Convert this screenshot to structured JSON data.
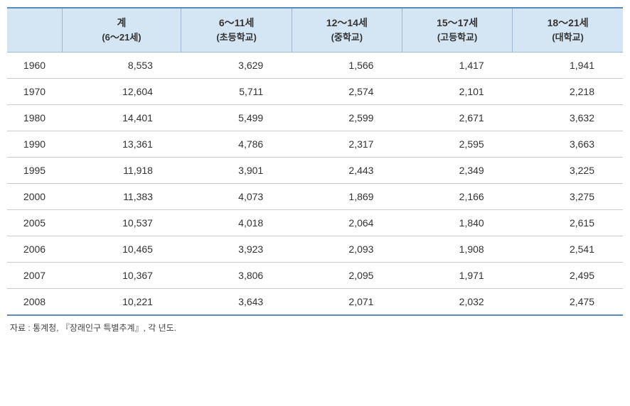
{
  "table": {
    "columns": [
      {
        "main": "",
        "sub": ""
      },
      {
        "main": "계",
        "sub": "(6～21세)"
      },
      {
        "main": "6～11세",
        "sub": "(초등학교)"
      },
      {
        "main": "12～14세",
        "sub": "(중학교)"
      },
      {
        "main": "15～17세",
        "sub": "(고등학교)"
      },
      {
        "main": "18～21세",
        "sub": "(대학교)"
      }
    ],
    "rows": [
      {
        "year": "1960",
        "values": [
          "8,553",
          "3,629",
          "1,566",
          "1,417",
          "1,941"
        ]
      },
      {
        "year": "1970",
        "values": [
          "12,604",
          "5,711",
          "2,574",
          "2,101",
          "2,218"
        ]
      },
      {
        "year": "1980",
        "values": [
          "14,401",
          "5,499",
          "2,599",
          "2,671",
          "3,632"
        ]
      },
      {
        "year": "1990",
        "values": [
          "13,361",
          "4,786",
          "2,317",
          "2,595",
          "3,663"
        ]
      },
      {
        "year": "1995",
        "values": [
          "11,918",
          "3,901",
          "2,443",
          "2,349",
          "3,225"
        ]
      },
      {
        "year": "2000",
        "values": [
          "11,383",
          "4,073",
          "1,869",
          "2,166",
          "3,275"
        ]
      },
      {
        "year": "2005",
        "values": [
          "10,537",
          "4,018",
          "2,064",
          "1,840",
          "2,615"
        ]
      },
      {
        "year": "2006",
        "values": [
          "10,465",
          "3,923",
          "2,093",
          "1,908",
          "2,541"
        ]
      },
      {
        "year": "2007",
        "values": [
          "10,367",
          "3,806",
          "2,095",
          "1,971",
          "2,495"
        ]
      },
      {
        "year": "2008",
        "values": [
          "10,221",
          "3,643",
          "2,071",
          "2,032",
          "2,475"
        ]
      }
    ]
  },
  "source": "자료 : 통계청, 『장래인구 특별추계』, 각 년도.",
  "styling": {
    "header_bg": "#d4e6f4",
    "border_color": "#a0b8d0",
    "outer_border_color": "#5a8ab8",
    "row_border_color": "#cccccc",
    "text_color": "#333333",
    "font_size_header": 14,
    "font_size_body": 14,
    "font_size_source": 12
  }
}
